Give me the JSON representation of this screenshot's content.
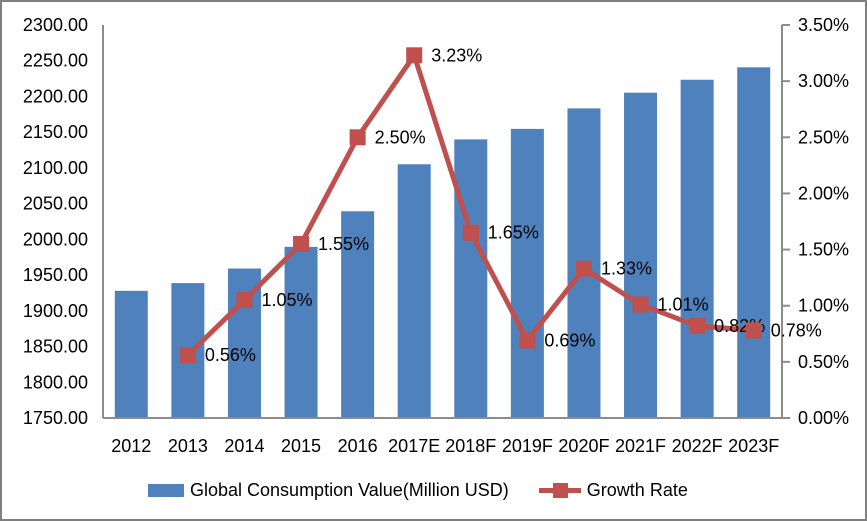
{
  "window": {
    "background": "#ffffff",
    "border_color": "#7f7f7f"
  },
  "colors": {
    "bar_fill": "#4F81BD",
    "line_color": "#C0504D",
    "axis_line": "#8C8C8C",
    "text": "#000000"
  },
  "legend": {
    "bar_label": "Global Consumption Value(Million USD)",
    "line_label": "Growth Rate"
  },
  "chart_data": {
    "type": "bar",
    "subtype": "combo-bar-line",
    "title": "",
    "xlabel": "",
    "ylabel_left": "",
    "ylabel_right": "",
    "grid": false,
    "legend_position": "bottom",
    "categories": [
      "2012",
      "2013",
      "2014",
      "2015",
      "2016",
      "2017E",
      "2018F",
      "2019F",
      "2020F",
      "2021F",
      "2022F",
      "2023F"
    ],
    "series": [
      {
        "name": "Global Consumption Value(Million USD)",
        "type": "bar",
        "axis": "left",
        "color": "#4F81BD",
        "values": [
          1928.0,
          1938.8,
          1959.2,
          1989.5,
          2039.3,
          2105.1,
          2139.9,
          2154.6,
          2183.3,
          2205.3,
          2223.4,
          2240.8
        ]
      },
      {
        "name": "Growth Rate",
        "type": "line",
        "axis": "right",
        "color": "#C0504D",
        "values": [
          null,
          0.56,
          1.05,
          1.55,
          2.5,
          3.23,
          1.65,
          0.69,
          1.33,
          1.01,
          0.82,
          0.78
        ],
        "point_labels": [
          null,
          "0.56%",
          "1.05%",
          "1.55%",
          "2.50%",
          "3.23%",
          "1.65%",
          "0.69%",
          "1.33%",
          "1.01%",
          "0.82%",
          "0.78%"
        ]
      }
    ],
    "left_axis": {
      "min": 1750,
      "max": 2300,
      "step": 50,
      "tick_labels": [
        "2300.00",
        "2250.00",
        "2200.00",
        "2150.00",
        "2100.00",
        "2050.00",
        "2000.00",
        "1950.00",
        "1900.00",
        "1850.00",
        "1800.00",
        "1750.00"
      ]
    },
    "right_axis": {
      "min": 0,
      "max": 3.5,
      "step": 0.5,
      "tick_labels": [
        "3.50%",
        "3.00%",
        "2.50%",
        "2.00%",
        "1.50%",
        "1.00%",
        "0.50%",
        "0.00%"
      ]
    }
  }
}
